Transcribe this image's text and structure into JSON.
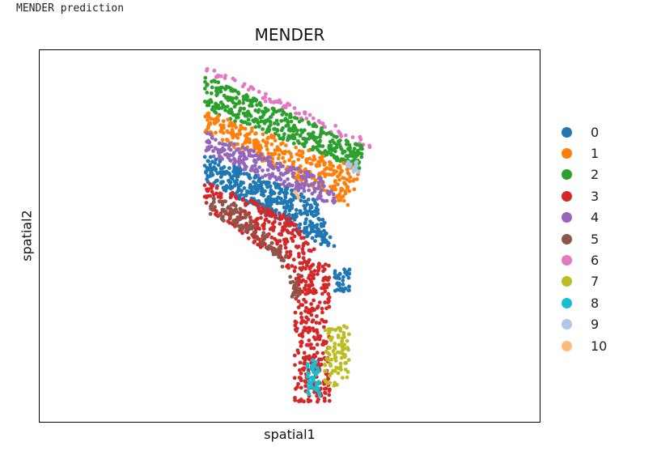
{
  "caption": "MENDER prediction",
  "chart_data": {
    "type": "scatter",
    "title": "MENDER",
    "xlabel": "spatial1",
    "ylabel": "spatial2",
    "grid": false,
    "ticks": false,
    "legend_placement": "right",
    "legend": [
      {
        "label": "0",
        "color": "#1f77b4"
      },
      {
        "label": "1",
        "color": "#ff7f0e"
      },
      {
        "label": "2",
        "color": "#2ca02c"
      },
      {
        "label": "3",
        "color": "#d62728"
      },
      {
        "label": "4",
        "color": "#9467bd"
      },
      {
        "label": "5",
        "color": "#8c564b"
      },
      {
        "label": "6",
        "color": "#e377c2"
      },
      {
        "label": "7",
        "color": "#bcbd22"
      },
      {
        "label": "8",
        "color": "#17becf"
      },
      {
        "label": "9",
        "color": "#aec7e8"
      },
      {
        "label": "10",
        "color": "#ffbb78"
      }
    ],
    "cluster_regions": [
      {
        "cluster": "6",
        "polygon": [
          [
            0.33,
            0.04
          ],
          [
            0.67,
            0.25
          ],
          [
            0.66,
            0.27
          ],
          [
            0.33,
            0.06
          ]
        ],
        "count": 70
      },
      {
        "cluster": "2",
        "polygon": [
          [
            0.33,
            0.07
          ],
          [
            0.65,
            0.26
          ],
          [
            0.64,
            0.32
          ],
          [
            0.33,
            0.16
          ]
        ],
        "count": 380
      },
      {
        "cluster": "1",
        "polygon": [
          [
            0.33,
            0.16
          ],
          [
            0.64,
            0.32
          ],
          [
            0.62,
            0.42
          ],
          [
            0.33,
            0.22
          ]
        ],
        "count": 320
      },
      {
        "cluster": "4",
        "polygon": [
          [
            0.33,
            0.22
          ],
          [
            0.56,
            0.34
          ],
          [
            0.62,
            0.44
          ],
          [
            0.33,
            0.28
          ]
        ],
        "count": 240
      },
      {
        "cluster": "0",
        "polygon": [
          [
            0.33,
            0.28
          ],
          [
            0.55,
            0.4
          ],
          [
            0.6,
            0.55
          ],
          [
            0.33,
            0.35
          ]
        ],
        "count": 420
      },
      {
        "cluster": "0",
        "polygon": [
          [
            0.59,
            0.59
          ],
          [
            0.62,
            0.59
          ],
          [
            0.62,
            0.65
          ],
          [
            0.59,
            0.65
          ]
        ],
        "count": 40
      },
      {
        "cluster": "3",
        "polygon": [
          [
            0.33,
            0.35
          ],
          [
            0.5,
            0.45
          ],
          [
            0.58,
            0.58
          ],
          [
            0.58,
            0.95
          ],
          [
            0.51,
            0.95
          ],
          [
            0.51,
            0.6
          ],
          [
            0.33,
            0.42
          ]
        ],
        "count": 560
      },
      {
        "cluster": "5",
        "polygon": [
          [
            0.34,
            0.39
          ],
          [
            0.4,
            0.42
          ],
          [
            0.5,
            0.56
          ],
          [
            0.49,
            0.59
          ],
          [
            0.43,
            0.5
          ],
          [
            0.34,
            0.44
          ]
        ],
        "count": 110
      },
      {
        "cluster": "5",
        "polygon": [
          [
            0.5,
            0.6
          ],
          [
            0.52,
            0.6
          ],
          [
            0.52,
            0.67
          ],
          [
            0.5,
            0.67
          ]
        ],
        "count": 18
      },
      {
        "cluster": "7",
        "polygon": [
          [
            0.57,
            0.75
          ],
          [
            0.62,
            0.74
          ],
          [
            0.62,
            0.88
          ],
          [
            0.57,
            0.92
          ]
        ],
        "count": 90
      },
      {
        "cluster": "8",
        "polygon": [
          [
            0.535,
            0.83
          ],
          [
            0.56,
            0.83
          ],
          [
            0.56,
            0.93
          ],
          [
            0.535,
            0.93
          ]
        ],
        "count": 45
      },
      {
        "cluster": "9",
        "polygon": [
          [
            0.61,
            0.3
          ],
          [
            0.64,
            0.3
          ],
          [
            0.64,
            0.33
          ],
          [
            0.61,
            0.33
          ]
        ],
        "count": 12
      },
      {
        "cluster": "10",
        "polygon": [
          [
            0.51,
            0.38
          ],
          [
            0.53,
            0.38
          ],
          [
            0.53,
            0.4
          ],
          [
            0.51,
            0.4
          ]
        ],
        "count": 3
      }
    ]
  }
}
